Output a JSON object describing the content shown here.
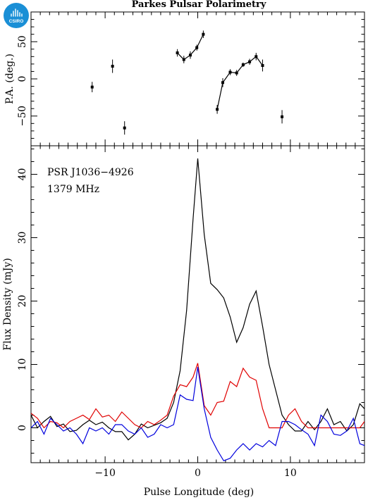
{
  "title": "Parkes Pulsar Polarimetry",
  "logo": {
    "text": "CSIRO",
    "color": "#1a8fd6"
  },
  "chart_data": [
    {
      "type": "scatter",
      "name": "position-angle",
      "ylabel": "P.A. (deg.)",
      "xlim": [
        -18,
        18
      ],
      "ylim": [
        -90,
        90
      ],
      "yticks": [
        -50,
        0,
        50
      ],
      "xticks": [
        -10,
        0,
        10
      ],
      "points": [
        {
          "x": -11.4,
          "y": -11,
          "err": 7
        },
        {
          "x": -9.2,
          "y": 17,
          "err": 9
        },
        {
          "x": -7.9,
          "y": -66,
          "err": 9
        },
        {
          "x": 9.1,
          "y": -51,
          "err": 9
        }
      ],
      "lines": [
        [
          {
            "x": -2.2,
            "y": 35,
            "err": 5
          },
          {
            "x": -1.5,
            "y": 26,
            "err": 5
          },
          {
            "x": -0.8,
            "y": 32,
            "err": 5
          },
          {
            "x": -0.1,
            "y": 42,
            "err": 4
          },
          {
            "x": 0.6,
            "y": 60,
            "err": 5
          }
        ],
        [
          {
            "x": 2.1,
            "y": -41,
            "err": 6
          },
          {
            "x": 2.7,
            "y": -5,
            "err": 6
          },
          {
            "x": 3.5,
            "y": 9,
            "err": 4
          },
          {
            "x": 4.2,
            "y": 8,
            "err": 4
          },
          {
            "x": 4.9,
            "y": 19,
            "err": 3
          },
          {
            "x": 5.6,
            "y": 23,
            "err": 4
          },
          {
            "x": 6.3,
            "y": 30,
            "err": 5
          },
          {
            "x": 7.0,
            "y": 18,
            "err": 8
          }
        ]
      ]
    },
    {
      "type": "line",
      "name": "profile",
      "xlabel": "Pulse Longitude (deg)",
      "ylabel": "Flux Density (mJy)",
      "annotations": [
        "PSR J1036−4926",
        "1379 MHz"
      ],
      "xlim": [
        -18,
        18
      ],
      "ylim": [
        -5.5,
        44.5
      ],
      "yticks": [
        0,
        10,
        20,
        30,
        40
      ],
      "xticks": [
        -10,
        0,
        10
      ],
      "x": [
        -18,
        -17.3,
        -16.6,
        -15.9,
        -15.2,
        -14.5,
        -13.8,
        -13.1,
        -12.4,
        -11.7,
        -11.0,
        -10.3,
        -9.6,
        -8.9,
        -8.2,
        -7.5,
        -6.8,
        -6.1,
        -5.4,
        -4.7,
        -4.0,
        -3.3,
        -2.6,
        -1.9,
        -1.2,
        -0.5,
        0.0,
        0.7,
        1.4,
        2.1,
        2.8,
        3.5,
        4.2,
        4.9,
        5.6,
        6.3,
        7.0,
        7.7,
        8.4,
        9.1,
        9.8,
        10.5,
        11.2,
        11.9,
        12.6,
        13.3,
        14.0,
        14.7,
        15.4,
        16.1,
        16.8,
        17.5,
        18
      ],
      "series": [
        {
          "color": "#000000",
          "values": [
            2.0,
            0.0,
            1.0,
            1.8,
            0.2,
            0.6,
            -0.6,
            -0.4,
            0.5,
            1.2,
            0.5,
            0.9,
            0.0,
            -0.6,
            -0.6,
            -1.9,
            -1.0,
            0.6,
            0.0,
            0.4,
            0.8,
            1.5,
            4.0,
            9.0,
            18.5,
            33.0,
            42.5,
            30.5,
            22.8,
            21.8,
            20.5,
            17.5,
            13.5,
            15.8,
            19.5,
            21.6,
            16.0,
            10.0,
            6.0,
            2.0,
            0.5,
            -0.5,
            -0.5,
            1.0,
            -0.3,
            1.0,
            3.0,
            0.5,
            1.0,
            -0.5,
            0.5,
            3.8,
            3.0
          ]
        },
        {
          "color": "#e00000",
          "values": [
            2.3,
            1.5,
            0.0,
            1.0,
            0.8,
            0.0,
            1.0,
            1.5,
            2.0,
            1.3,
            3.0,
            1.7,
            2.0,
            1.0,
            2.5,
            1.5,
            0.5,
            0.0,
            1.0,
            0.5,
            1.2,
            2.0,
            5.0,
            6.8,
            6.5,
            8.0,
            10.2,
            3.5,
            2.0,
            4.0,
            4.2,
            7.3,
            6.5,
            9.4,
            8.0,
            7.5,
            3.0,
            0.0,
            0.0,
            0.0,
            2.0,
            3.0,
            1.0,
            0.0,
            0.0,
            0.0,
            0.0,
            0.0,
            0.0,
            0.0,
            0.0,
            0.0,
            1.0
          ]
        },
        {
          "color": "#0000dd",
          "values": [
            0.0,
            1.0,
            -1.0,
            1.5,
            0.5,
            -0.5,
            0.0,
            -1.0,
            -2.5,
            0.0,
            -0.5,
            0.0,
            -1.0,
            0.5,
            0.5,
            -0.5,
            -1.0,
            0.0,
            -1.5,
            -1.0,
            0.5,
            0.0,
            0.5,
            5.2,
            4.5,
            4.3,
            9.6,
            3.0,
            -1.5,
            -3.5,
            -5.2,
            -4.8,
            -3.5,
            -2.5,
            -3.5,
            -2.5,
            -3.0,
            -2.0,
            -2.8,
            1.0,
            1.0,
            0.5,
            -0.3,
            -1.0,
            -2.8,
            2.0,
            1.0,
            -1.0,
            -1.2,
            -0.5,
            1.5,
            -2.5,
            -2.8
          ]
        }
      ]
    }
  ]
}
